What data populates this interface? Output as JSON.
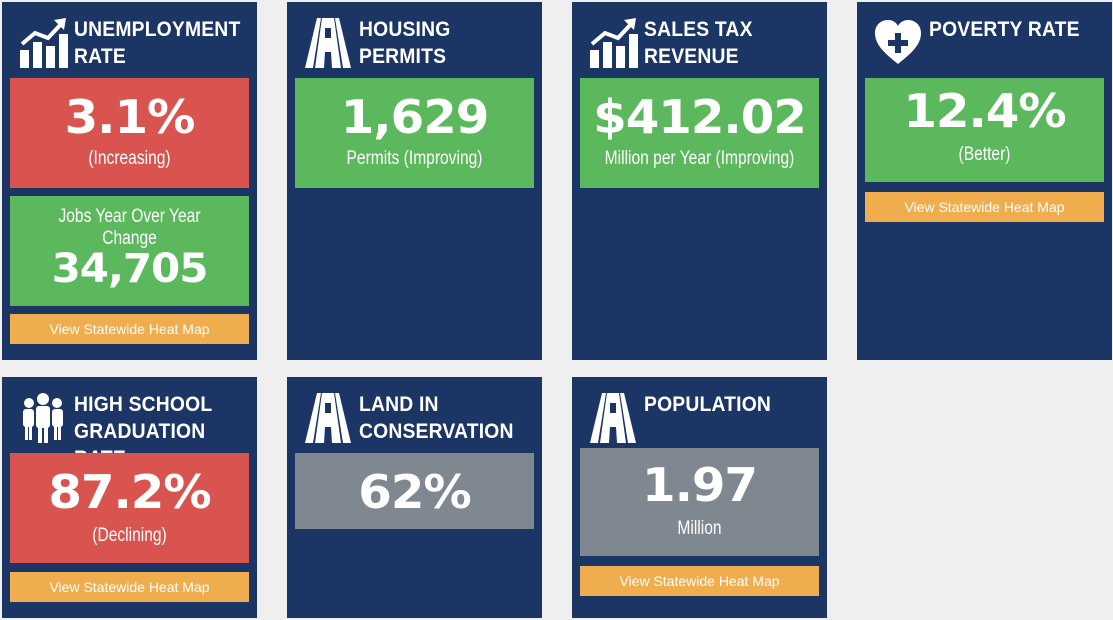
{
  "cards": [
    {
      "title_line1": "UNEMPLOYMENT",
      "title_line2": "RATE",
      "icon": "chart-up-icon",
      "value": "3.1%",
      "value_note": "(Increasing)",
      "jobs_label": "Jobs Year Over Year Change",
      "jobs_value": "34,705",
      "button": "View Statewide Heat Map"
    },
    {
      "title_line1": "HOUSING",
      "title_line2": "PERMITS",
      "icon": "road-icon",
      "value": "1,629",
      "value_note": "Permits (Improving)"
    },
    {
      "title_line1": "SALES TAX",
      "title_line2": "REVENUE",
      "icon": "chart-up-icon",
      "value": "$412.02",
      "value_note": "Million per Year (Improving)"
    },
    {
      "title_line1": "POVERTY RATE",
      "icon": "heart-plus-icon",
      "value": "12.4%",
      "value_note": "(Better)",
      "button": "View Statewide Heat Map"
    },
    {
      "title_line1": "HIGH SCHOOL",
      "title_line2": "GRADUATION RATE",
      "icon": "people-icon",
      "value": "87.2%",
      "value_note": "(Declining)",
      "button": "View Statewide Heat Map"
    },
    {
      "title_line1": "LAND IN",
      "title_line2": "CONSERVATION",
      "icon": "road-icon",
      "value": "62%"
    },
    {
      "title_line1": "POPULATION",
      "icon": "road-icon",
      "value": "1.97",
      "value_note": "Million",
      "button": "View Statewide Heat Map"
    }
  ],
  "colors": {
    "card_bg": "#1b3564",
    "red": "#d9534f",
    "green": "#5cb85c",
    "gray": "#7f8891",
    "button": "#f0ad4e",
    "page_bg": "#efefef"
  }
}
